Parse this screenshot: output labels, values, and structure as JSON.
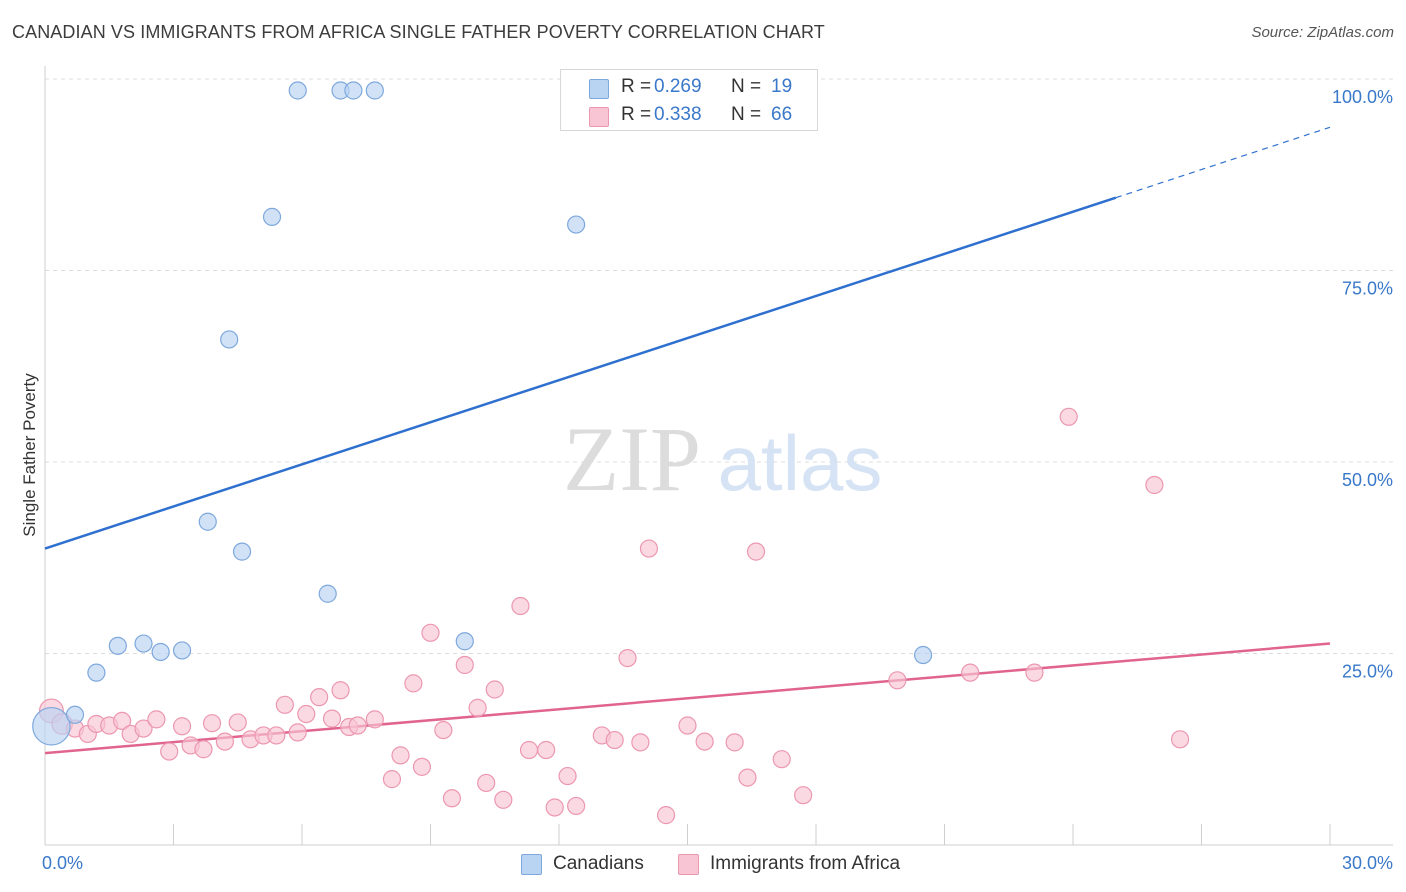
{
  "title": "CANADIAN VS IMMIGRANTS FROM AFRICA SINGLE FATHER POVERTY CORRELATION CHART",
  "source": "Source: ZipAtlas.com",
  "watermark": {
    "zip": "ZIP",
    "atlas": "atlas"
  },
  "legend_top": {
    "rows": [
      {
        "r_label": "R =",
        "r_value": "0.269",
        "n_label": "N =",
        "n_value": "19"
      },
      {
        "r_label": "R =",
        "r_value": "0.338",
        "n_label": "N =",
        "n_value": "66"
      }
    ]
  },
  "legend_bottom": {
    "items": [
      "Canadians",
      "Immigrants from Africa"
    ]
  },
  "colors": {
    "canadians_fill": "#b9d3f3",
    "canadians_stroke": "#7ea8dc",
    "canadians_line": "#2f70cf",
    "africa_fill": "#f8c5d4",
    "africa_stroke": "#ec97b0",
    "africa_line": "#e0648f",
    "axis_label": "#3a78c9",
    "grid": "#dcdcdc"
  },
  "chart_data": {
    "type": "scatter",
    "title": "CANADIAN VS IMMIGRANTS FROM AFRICA SINGLE FATHER POVERTY CORRELATION CHART",
    "xlabel": "",
    "ylabel": "Single Father Poverty",
    "xlim": [
      0,
      30
    ],
    "ylim": [
      0,
      100
    ],
    "x_ticks": [
      "0.0%",
      "30.0%"
    ],
    "y_ticks": [
      "100.0%",
      "75.0%",
      "50.0%",
      "25.0%"
    ],
    "y_tick_values": [
      100,
      75,
      50,
      25
    ],
    "grid": true,
    "legend_position": "bottom",
    "series": [
      {
        "name": "Canadians",
        "r": 0.269,
        "n": 19,
        "trend": {
          "x0": 0,
          "y0": 38.7,
          "x1": 25.0,
          "y1": 84.5,
          "dash_to_x": 30,
          "dash_to_y": 93.7
        },
        "points": [
          [
            0.15,
            15.5,
            22
          ],
          [
            0.7,
            17.0,
            10
          ],
          [
            1.2,
            22.5,
            10
          ],
          [
            1.7,
            26.0,
            10
          ],
          [
            2.3,
            26.3,
            10
          ],
          [
            2.7,
            25.2,
            10
          ],
          [
            3.2,
            25.4,
            10
          ],
          [
            3.8,
            42.2,
            10
          ],
          [
            4.3,
            66.0,
            10
          ],
          [
            4.6,
            38.3,
            10
          ],
          [
            5.3,
            82.0,
            10
          ],
          [
            5.9,
            98.5,
            10
          ],
          [
            6.6,
            32.8,
            10
          ],
          [
            6.9,
            98.5,
            10
          ],
          [
            7.2,
            98.5,
            10
          ],
          [
            7.7,
            98.5,
            10
          ],
          [
            9.8,
            26.6,
            10
          ],
          [
            12.4,
            81.0,
            10
          ],
          [
            20.5,
            24.8,
            10
          ]
        ]
      },
      {
        "name": "Immigrants from Africa",
        "r": 0.338,
        "n": 66,
        "trend": {
          "x0": 0,
          "y0": 12.0,
          "x1": 30,
          "y1": 26.3
        },
        "points": [
          [
            0.15,
            17.5,
            14
          ],
          [
            0.4,
            15.8,
            12
          ],
          [
            0.7,
            15.2,
            10
          ],
          [
            1.0,
            14.5,
            10
          ],
          [
            1.2,
            15.8,
            10
          ],
          [
            1.5,
            15.6,
            10
          ],
          [
            1.8,
            16.2,
            10
          ],
          [
            2.0,
            14.5,
            10
          ],
          [
            2.3,
            15.2,
            10
          ],
          [
            2.6,
            16.4,
            10
          ],
          [
            2.9,
            12.2,
            10
          ],
          [
            3.2,
            15.5,
            10
          ],
          [
            3.4,
            13.0,
            10
          ],
          [
            3.7,
            12.5,
            10
          ],
          [
            3.9,
            15.9,
            10
          ],
          [
            4.2,
            13.5,
            10
          ],
          [
            4.5,
            16.0,
            10
          ],
          [
            4.8,
            13.8,
            10
          ],
          [
            5.1,
            14.3,
            10
          ],
          [
            5.4,
            14.3,
            10
          ],
          [
            5.6,
            18.3,
            10
          ],
          [
            5.9,
            14.7,
            10
          ],
          [
            6.1,
            17.1,
            10
          ],
          [
            6.4,
            19.3,
            10
          ],
          [
            6.7,
            16.5,
            10
          ],
          [
            6.9,
            20.2,
            10
          ],
          [
            7.1,
            15.4,
            10
          ],
          [
            7.3,
            15.6,
            10
          ],
          [
            7.7,
            16.4,
            10
          ],
          [
            8.1,
            8.6,
            10
          ],
          [
            8.3,
            11.7,
            10
          ],
          [
            8.6,
            21.1,
            10
          ],
          [
            8.8,
            10.2,
            10
          ],
          [
            9.0,
            27.7,
            10
          ],
          [
            9.3,
            15.0,
            10
          ],
          [
            9.5,
            6.1,
            10
          ],
          [
            9.8,
            23.5,
            10
          ],
          [
            10.1,
            17.9,
            10
          ],
          [
            10.3,
            8.1,
            10
          ],
          [
            10.5,
            20.3,
            10
          ],
          [
            10.7,
            5.9,
            10
          ],
          [
            11.1,
            31.2,
            10
          ],
          [
            11.3,
            12.4,
            10
          ],
          [
            11.7,
            12.4,
            10
          ],
          [
            11.9,
            4.9,
            10
          ],
          [
            12.2,
            9.0,
            10
          ],
          [
            12.4,
            5.1,
            10
          ],
          [
            13.0,
            14.3,
            10
          ],
          [
            13.3,
            13.7,
            10
          ],
          [
            13.6,
            24.4,
            10
          ],
          [
            13.9,
            13.4,
            10
          ],
          [
            14.1,
            38.7,
            10
          ],
          [
            14.5,
            3.9,
            10
          ],
          [
            15.0,
            15.6,
            10
          ],
          [
            15.4,
            13.5,
            10
          ],
          [
            16.1,
            13.4,
            10
          ],
          [
            16.4,
            8.8,
            10
          ],
          [
            16.6,
            38.3,
            10
          ],
          [
            17.2,
            11.2,
            10
          ],
          [
            17.7,
            6.5,
            10
          ],
          [
            19.9,
            21.5,
            10
          ],
          [
            21.6,
            22.5,
            10
          ],
          [
            23.1,
            22.5,
            10
          ],
          [
            23.9,
            55.9,
            10
          ],
          [
            25.9,
            47.0,
            10
          ],
          [
            26.5,
            13.8,
            10
          ]
        ]
      }
    ]
  }
}
